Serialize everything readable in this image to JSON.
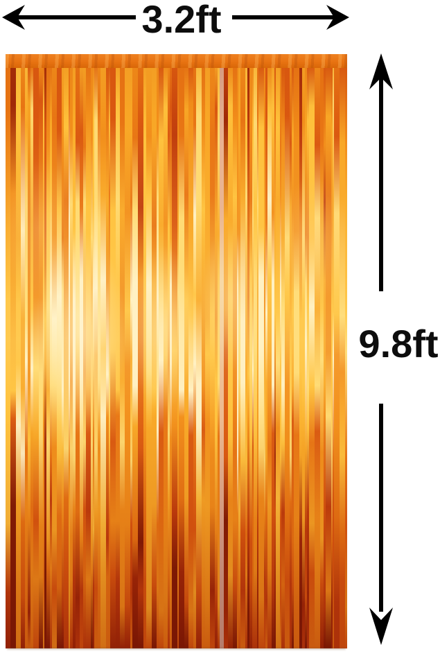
{
  "image_type": "product photo with dimension annotations",
  "annotations": {
    "width_label": "3.2ft",
    "height_label": "9.8ft",
    "arrow_color": "#000000",
    "label_color": "#0d0d0d"
  },
  "curtain": {
    "name": "orange metallic foil fringe curtain",
    "band_color_top": "#EE8121",
    "band_color_bottom": "#D96708",
    "palette": [
      "#7A1604",
      "#9C2407",
      "#BE3A0C",
      "#D9560F",
      "#E87413",
      "#F28E1A",
      "#F9A826",
      "#FFC33D",
      "#FFDC74",
      "#FFF3C9"
    ],
    "pale_streak_color": "#EFD7C8"
  }
}
